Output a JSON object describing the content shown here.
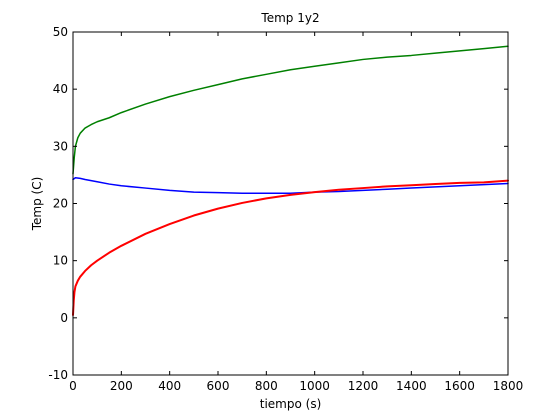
{
  "chart_data": {
    "type": "line",
    "title": "Temp 1y2",
    "xlabel": "tiempo (s)",
    "ylabel": "Temp (C)",
    "xlim": [
      0,
      1800
    ],
    "ylim": [
      -10,
      50
    ],
    "xticks": [
      0,
      200,
      400,
      600,
      800,
      1000,
      1200,
      1400,
      1600,
      1800
    ],
    "yticks": [
      -10,
      0,
      10,
      20,
      30,
      40,
      50
    ],
    "grid": false,
    "series": [
      {
        "color": "#008000",
        "x": [
          0,
          5,
          10,
          20,
          30,
          50,
          75,
          100,
          150,
          200,
          300,
          400,
          500,
          600,
          700,
          800,
          900,
          1000,
          1100,
          1200,
          1300,
          1400,
          1500,
          1600,
          1700,
          1800
        ],
        "y": [
          25.2,
          28.0,
          30.0,
          31.5,
          32.3,
          33.2,
          33.8,
          34.3,
          35.0,
          35.9,
          37.4,
          38.7,
          39.8,
          40.8,
          41.8,
          42.6,
          43.4,
          44.0,
          44.6,
          45.2,
          45.6,
          45.9,
          46.3,
          46.7,
          47.1,
          47.5
        ]
      },
      {
        "color": "#0000ff",
        "x": [
          0,
          10,
          30,
          50,
          100,
          150,
          200,
          300,
          400,
          500,
          600,
          700,
          800,
          900,
          1000,
          1100,
          1200,
          1300,
          1400,
          1500,
          1600,
          1700,
          1800
        ],
        "y": [
          24.2,
          24.5,
          24.4,
          24.2,
          23.8,
          23.4,
          23.1,
          22.7,
          22.3,
          22.0,
          21.9,
          21.8,
          21.8,
          21.8,
          22.0,
          22.1,
          22.3,
          22.5,
          22.7,
          22.9,
          23.1,
          23.3,
          23.5
        ]
      },
      {
        "color": "#ff0000",
        "x": [
          0,
          3,
          6,
          10,
          20,
          30,
          50,
          75,
          100,
          150,
          200,
          300,
          400,
          500,
          600,
          700,
          800,
          900,
          1000,
          1100,
          1200,
          1300,
          1400,
          1500,
          1600,
          1700,
          1800
        ],
        "y": [
          0.5,
          3.0,
          4.5,
          5.5,
          6.5,
          7.2,
          8.2,
          9.2,
          10.0,
          11.4,
          12.6,
          14.7,
          16.4,
          17.9,
          19.1,
          20.1,
          20.9,
          21.5,
          22.0,
          22.4,
          22.7,
          23.0,
          23.2,
          23.4,
          23.6,
          23.7,
          24.0
        ]
      }
    ]
  }
}
